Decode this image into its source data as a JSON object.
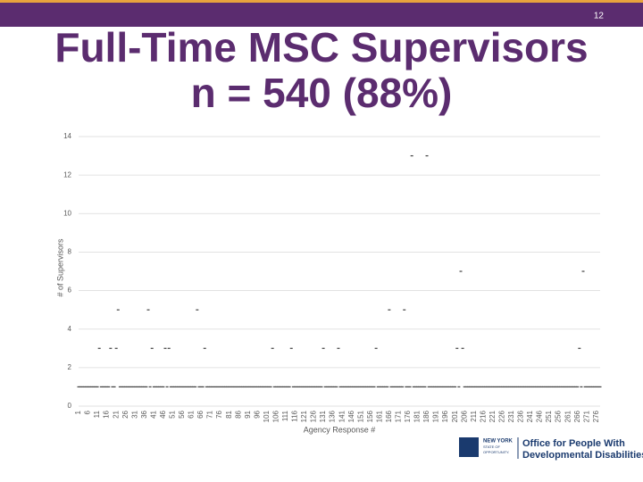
{
  "page_number": "12",
  "title_lines": [
    "Full-Time MSC Supervisors",
    "n = 540 (88%)"
  ],
  "logo": {
    "state_lines": [
      "NEW YORK",
      "STATE OF",
      "OPPORTUNITY."
    ],
    "agency_lines": [
      "Office for People With",
      "Developmental Disabilities"
    ]
  },
  "chart_data": {
    "type": "scatter",
    "xlabel": "Agency Response #",
    "ylabel": "# of Supervisors",
    "color": "#404040",
    "grid": true,
    "xlim": [
      1,
      278
    ],
    "ylim": [
      0,
      14
    ],
    "yticks": [
      0,
      2,
      4,
      6,
      8,
      10,
      12,
      14
    ],
    "xticks": [
      1,
      6,
      11,
      16,
      21,
      26,
      31,
      36,
      41,
      46,
      51,
      56,
      61,
      66,
      71,
      76,
      81,
      86,
      91,
      96,
      101,
      106,
      111,
      116,
      121,
      126,
      131,
      136,
      141,
      146,
      151,
      156,
      161,
      166,
      171,
      176,
      181,
      186,
      191,
      196,
      201,
      206,
      211,
      216,
      221,
      226,
      231,
      236,
      241,
      246,
      251,
      256,
      261,
      266,
      271,
      276
    ],
    "x": [
      1,
      2,
      3,
      4,
      5,
      6,
      7,
      8,
      9,
      10,
      11,
      12,
      13,
      14,
      15,
      16,
      17,
      18,
      19,
      20,
      21,
      22,
      23,
      24,
      25,
      26,
      27,
      28,
      29,
      30,
      31,
      32,
      33,
      34,
      35,
      36,
      37,
      38,
      39,
      40,
      41,
      42,
      43,
      44,
      45,
      46,
      47,
      48,
      49,
      50,
      51,
      52,
      53,
      54,
      55,
      56,
      57,
      58,
      59,
      60,
      61,
      62,
      63,
      64,
      65,
      66,
      67,
      68,
      69,
      70,
      71,
      72,
      73,
      74,
      75,
      76,
      77,
      78,
      79,
      80,
      81,
      82,
      83,
      84,
      85,
      86,
      87,
      88,
      89,
      90,
      91,
      92,
      93,
      94,
      95,
      96,
      97,
      98,
      99,
      100,
      101,
      102,
      103,
      104,
      105,
      106,
      107,
      108,
      109,
      110,
      111,
      112,
      113,
      114,
      115,
      116,
      117,
      118,
      119,
      120,
      121,
      122,
      123,
      124,
      125,
      126,
      127,
      128,
      129,
      130,
      131,
      132,
      133,
      134,
      135,
      136,
      137,
      138,
      139,
      140,
      141,
      142,
      143,
      144,
      145,
      146,
      147,
      148,
      149,
      150,
      151,
      152,
      153,
      154,
      155,
      156,
      157,
      158,
      159,
      160,
      161,
      162,
      163,
      164,
      165,
      166,
      167,
      168,
      169,
      170,
      171,
      172,
      173,
      174,
      175,
      176,
      177,
      178,
      179,
      180,
      181,
      182,
      183,
      184,
      185,
      186,
      187,
      188,
      189,
      190,
      191,
      192,
      193,
      194,
      195,
      196,
      197,
      198,
      199,
      200,
      201,
      202,
      203,
      204,
      205,
      206,
      207,
      208,
      209,
      210,
      211,
      212,
      213,
      214,
      215,
      216,
      217,
      218,
      219,
      220,
      221,
      222,
      223,
      224,
      225,
      226,
      227,
      228,
      229,
      230,
      231,
      232,
      233,
      234,
      235,
      236,
      237,
      238,
      239,
      240,
      241,
      242,
      243,
      244,
      245,
      246,
      247,
      248,
      249,
      250,
      251,
      252,
      253,
      254,
      255,
      256,
      257,
      258,
      259,
      260,
      261,
      262,
      263,
      264,
      265,
      266,
      267,
      268,
      269,
      270,
      271,
      272,
      273,
      274,
      275,
      276,
      277,
      278
    ],
    "values": [
      1,
      1,
      1,
      1,
      1,
      1,
      1,
      1,
      1,
      1,
      1,
      3,
      1,
      1,
      1,
      1,
      1,
      3,
      1,
      1,
      3,
      5,
      1,
      1,
      1,
      1,
      1,
      1,
      1,
      1,
      1,
      1,
      1,
      1,
      1,
      1,
      1,
      5,
      1,
      3,
      1,
      1,
      1,
      1,
      1,
      1,
      3,
      1,
      3,
      1,
      1,
      1,
      1,
      1,
      1,
      1,
      1,
      1,
      1,
      1,
      1,
      1,
      1,
      5,
      1,
      1,
      1,
      3,
      1,
      1,
      1,
      1,
      1,
      1,
      1,
      1,
      1,
      1,
      1,
      1,
      1,
      1,
      1,
      1,
      1,
      1,
      1,
      1,
      1,
      1,
      1,
      1,
      1,
      1,
      1,
      1,
      1,
      1,
      1,
      1,
      1,
      1,
      1,
      3,
      1,
      1,
      1,
      1,
      1,
      1,
      1,
      1,
      1,
      3,
      1,
      1,
      1,
      1,
      1,
      1,
      1,
      1,
      1,
      1,
      1,
      1,
      1,
      1,
      1,
      1,
      3,
      1,
      1,
      1,
      1,
      1,
      1,
      1,
      3,
      1,
      1,
      1,
      1,
      1,
      1,
      1,
      1,
      1,
      1,
      1,
      1,
      1,
      1,
      1,
      1,
      1,
      1,
      1,
      3,
      1,
      1,
      1,
      1,
      1,
      1,
      5,
      1,
      1,
      1,
      1,
      1,
      1,
      1,
      5,
      1,
      1,
      1,
      13,
      1,
      1,
      1,
      1,
      1,
      1,
      1,
      13,
      1,
      1,
      1,
      1,
      1,
      1,
      1,
      1,
      1,
      1,
      1,
      1,
      1,
      1,
      1,
      3,
      1,
      7,
      3,
      1,
      1,
      1,
      1,
      1,
      1,
      1,
      1,
      1,
      1,
      1,
      1,
      1,
      1,
      1,
      1,
      1,
      1,
      1,
      1,
      1,
      1,
      1,
      1,
      1,
      1,
      1,
      1,
      1,
      1,
      1,
      1,
      1,
      1,
      1,
      1,
      1,
      1,
      1,
      1,
      1,
      1,
      1,
      1,
      1,
      1,
      1,
      1,
      1,
      1,
      1,
      1,
      1,
      1,
      1,
      1,
      1,
      1,
      1,
      1,
      1,
      3,
      1,
      7,
      1,
      1,
      1,
      1,
      1,
      1,
      1,
      1,
      1
    ]
  }
}
